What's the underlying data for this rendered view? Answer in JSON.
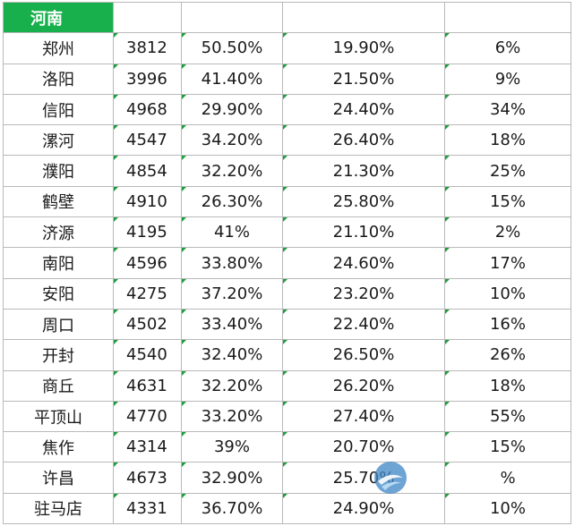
{
  "sheet": {
    "header": {
      "label": "河南",
      "col2": "",
      "col3": "",
      "col4": "",
      "col5": ""
    },
    "rows": [
      {
        "city": "郑州",
        "value": "3812",
        "pct1": "50.50%",
        "pct2": "19.90%",
        "pct3": "6%"
      },
      {
        "city": "洛阳",
        "value": "3996",
        "pct1": "41.40%",
        "pct2": "21.50%",
        "pct3": "9%"
      },
      {
        "city": "信阳",
        "value": "4968",
        "pct1": "29.90%",
        "pct2": "24.40%",
        "pct3": "34%"
      },
      {
        "city": "漯河",
        "value": "4547",
        "pct1": "34.20%",
        "pct2": "26.40%",
        "pct3": "18%"
      },
      {
        "city": "濮阳",
        "value": "4854",
        "pct1": "32.20%",
        "pct2": "21.30%",
        "pct3": "25%"
      },
      {
        "city": "鹤壁",
        "value": "4910",
        "pct1": "26.30%",
        "pct2": "25.80%",
        "pct3": "15%"
      },
      {
        "city": "济源",
        "value": "4195",
        "pct1": "41%",
        "pct2": "21.10%",
        "pct3": "2%"
      },
      {
        "city": "南阳",
        "value": "4596",
        "pct1": "33.80%",
        "pct2": "24.60%",
        "pct3": "17%"
      },
      {
        "city": "安阳",
        "value": "4275",
        "pct1": "37.20%",
        "pct2": "23.20%",
        "pct3": "10%"
      },
      {
        "city": "周口",
        "value": "4502",
        "pct1": "33.40%",
        "pct2": "22.40%",
        "pct3": "16%"
      },
      {
        "city": "开封",
        "value": "4540",
        "pct1": "32.40%",
        "pct2": "26.50%",
        "pct3": "26%"
      },
      {
        "city": "商丘",
        "value": "4631",
        "pct1": "32.20%",
        "pct2": "26.20%",
        "pct3": "18%"
      },
      {
        "city": "平顶山",
        "value": "4770",
        "pct1": "33.20%",
        "pct2": "27.40%",
        "pct3": "55%"
      },
      {
        "city": "焦作",
        "value": "4314",
        "pct1": "39%",
        "pct2": "20.70%",
        "pct3": "15%"
      },
      {
        "city": "许昌",
        "value": "4673",
        "pct1": "32.90%",
        "pct2": "25.70%",
        "pct3": "%"
      },
      {
        "city": "驻马店",
        "value": "4331",
        "pct1": "36.70%",
        "pct2": "24.90%",
        "pct3": "10%"
      }
    ]
  },
  "colors": {
    "header_bg": "#18b04c",
    "header_text": "#ffffff",
    "grid": "#b9b9b9",
    "corner_marker": "#1f9d3e"
  },
  "icons": {
    "watermark": "watermark-logo-icon"
  }
}
